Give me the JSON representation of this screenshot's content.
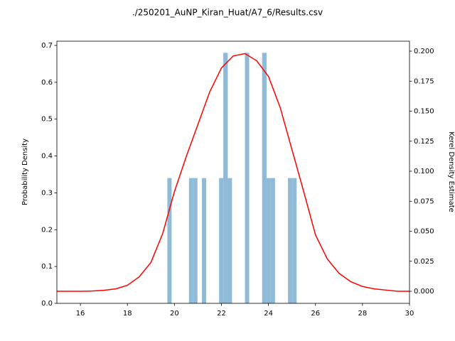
{
  "chart_data": {
    "type": "histogram",
    "title": "./250201_AuNP_Kiran_Huat/A7_6/Results.csv",
    "ylabel": "Probability Density",
    "y2label": "Kerel Density Estimate",
    "bins": [
      19.7,
      19.88,
      20.07,
      20.25,
      20.43,
      20.62,
      20.8,
      20.98,
      21.17,
      21.35,
      21.53,
      21.72,
      21.9,
      22.08,
      22.27,
      22.45,
      22.63,
      22.82,
      23.0,
      23.18,
      23.37,
      23.55,
      23.73,
      23.92,
      24.1,
      24.28,
      24.47,
      24.65,
      24.83,
      25.02,
      25.2
    ],
    "values": [
      0.34,
      0,
      0,
      0,
      0,
      0.34,
      0.34,
      0,
      0.34,
      0,
      0,
      0,
      0.34,
      0.68,
      0.34,
      0,
      0,
      0,
      0.68,
      0,
      0,
      0,
      0.68,
      0.34,
      0.34,
      0,
      0,
      0,
      0.34,
      0.34
    ],
    "color": "#8fbbd9",
    "xlim": [
      15,
      30
    ],
    "xticks": [
      16,
      18,
      20,
      22,
      24,
      26,
      28,
      30
    ],
    "ylim": [
      0,
      0.7115
    ],
    "yticks": [
      {
        "value": 0,
        "label": "0.0"
      },
      {
        "value": 0.1,
        "label": "0.1"
      },
      {
        "value": 0.2,
        "label": "0.2"
      },
      {
        "value": 0.3,
        "label": "0.3"
      },
      {
        "value": 0.4,
        "label": "0.4"
      },
      {
        "value": 0.5,
        "label": "0.5"
      },
      {
        "value": 0.6,
        "label": "0.6"
      },
      {
        "value": 0.7,
        "label": "0.7"
      }
    ],
    "y2lim": [
      -0.01006,
      0.2083
    ],
    "y2ticks": [
      {
        "value": 0,
        "label": "0.000"
      },
      {
        "value": 0.025,
        "label": "0.025"
      },
      {
        "value": 0.05,
        "label": "0.050"
      },
      {
        "value": 0.075,
        "label": "0.075"
      },
      {
        "value": 0.1,
        "label": "0.100"
      },
      {
        "value": 0.125,
        "label": "0.125"
      },
      {
        "value": 0.15,
        "label": "0.150"
      },
      {
        "value": 0.175,
        "label": "0.175"
      },
      {
        "value": 0.2,
        "label": "0.200"
      }
    ],
    "series": [
      {
        "type": "line",
        "axis": "y2",
        "color": "#ff0000",
        "x": [
          15,
          15.5,
          16,
          16.5,
          17,
          17.5,
          18,
          18.5,
          19,
          19.5,
          20,
          20.5,
          21,
          21.5,
          22,
          22.5,
          23,
          23.5,
          24,
          24.5,
          25,
          25.5,
          26,
          26.5,
          27,
          27.5,
          28,
          28.5,
          29,
          29.5,
          30
        ],
        "values": [
          0,
          0,
          0,
          0.0002,
          0.0008,
          0.002,
          0.005,
          0.012,
          0.024,
          0.048,
          0.083,
          0.112,
          0.139,
          0.166,
          0.186,
          0.196,
          0.198,
          0.192,
          0.179,
          0.153,
          0.118,
          0.083,
          0.047,
          0.027,
          0.015,
          0.008,
          0.004,
          0.002,
          0.001,
          0,
          0
        ]
      }
    ]
  }
}
